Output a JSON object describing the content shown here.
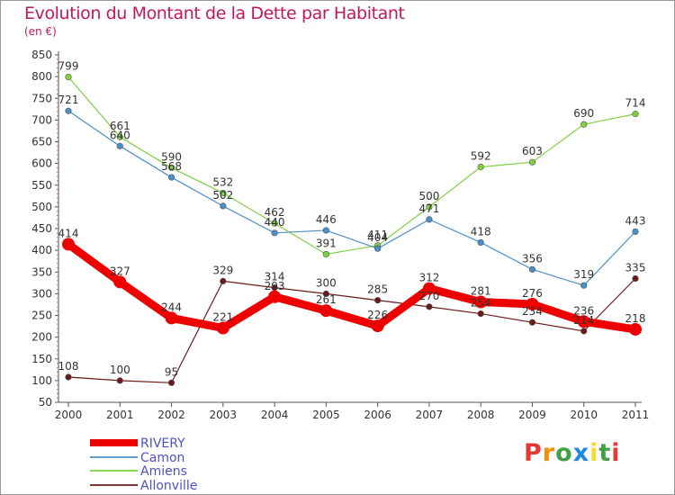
{
  "title": "Evolution du Montant de la Dette par Habitant",
  "subtitle": "(en €)",
  "logo": {
    "text": "Proxiti",
    "letters": [
      "P",
      "r",
      "o",
      "x",
      "i",
      "t",
      "i"
    ],
    "colors": [
      "#e53935",
      "#fb8c00",
      "#43a047",
      "#1e88e5",
      "#fdd835",
      "#43a047",
      "#e53935"
    ]
  },
  "chart_data": {
    "type": "line",
    "categories": [
      "2000",
      "2001",
      "2002",
      "2003",
      "2004",
      "2005",
      "2006",
      "2007",
      "2008",
      "2009",
      "2010",
      "2011"
    ],
    "yticks": [
      50,
      100,
      150,
      200,
      250,
      300,
      350,
      400,
      450,
      500,
      550,
      600,
      650,
      700,
      750,
      800,
      850
    ],
    "ylim": [
      50,
      850
    ],
    "grid": false,
    "legend_position": "bottom-left",
    "series": [
      {
        "name": "RIVERY",
        "color": "#ee0000",
        "width": 9,
        "marker": 7,
        "values": [
          414,
          327,
          244,
          221,
          293,
          261,
          226,
          312,
          281,
          276,
          236,
          218
        ],
        "labels": [
          "414",
          "327",
          "244",
          "221",
          "293",
          "261",
          "226",
          "312",
          "281",
          "276",
          "236",
          "218"
        ]
      },
      {
        "name": "Camon",
        "color": "#4a90c8",
        "width": 1.2,
        "marker": 3.3,
        "values": [
          721,
          640,
          568,
          502,
          440,
          446,
          404,
          471,
          418,
          356,
          319,
          443
        ],
        "labels": [
          "721",
          "640",
          "568",
          "502",
          "440",
          "446",
          "404",
          "471",
          "418",
          "356",
          "319",
          "443"
        ]
      },
      {
        "name": "Amiens",
        "color": "#80d040",
        "width": 1.2,
        "marker": 3.3,
        "values": [
          799,
          661,
          590,
          532,
          462,
          391,
          411,
          500,
          592,
          603,
          690,
          714
        ],
        "labels": [
          "799",
          "661",
          "590",
          "532",
          "462",
          "391",
          "411",
          "500",
          "592",
          "603",
          "690",
          "714"
        ]
      },
      {
        "name": "Allonville",
        "color": "#6b1a1a",
        "width": 1.2,
        "marker": 3.3,
        "values": [
          108,
          100,
          95,
          329,
          314,
          300,
          285,
          270,
          254,
          234,
          214,
          335
        ],
        "labels": [
          "108",
          "100",
          "95",
          "329",
          "314",
          "300",
          "285",
          "270",
          "254",
          "234",
          "214",
          "335"
        ]
      }
    ]
  }
}
